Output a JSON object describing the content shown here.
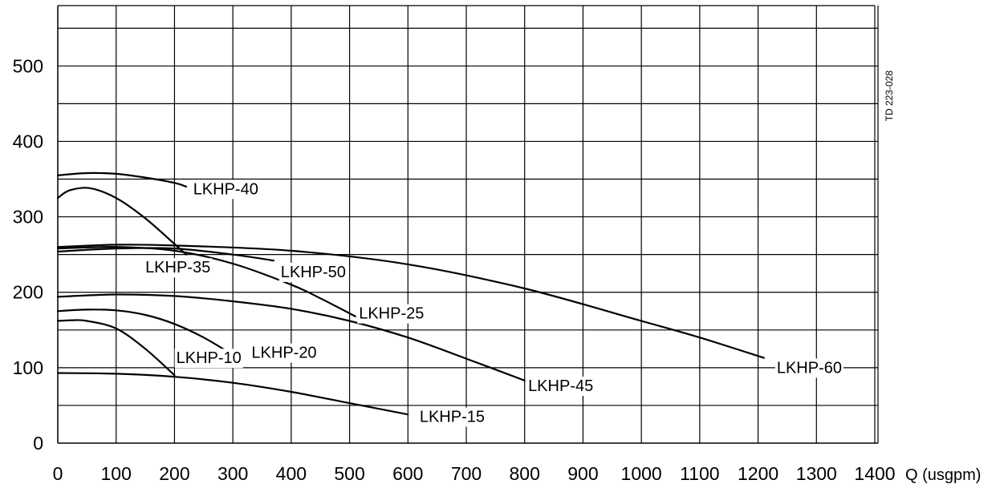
{
  "chart_data": {
    "type": "line",
    "title": "",
    "xlabel": "",
    "ylabel": "",
    "x_unit_label": "Q (usgpm)",
    "xlim": [
      0,
      1400
    ],
    "ylim": [
      0,
      580
    ],
    "grid": true,
    "x_ticks": [
      0,
      100,
      200,
      300,
      400,
      500,
      600,
      700,
      800,
      900,
      1000,
      1100,
      1200,
      1300,
      1400
    ],
    "y_ticks": [
      0,
      100,
      200,
      300,
      400,
      500
    ],
    "y_grid_values": [
      50,
      100,
      150,
      200,
      250,
      300,
      350,
      400,
      450,
      500,
      550
    ],
    "vertical_annotation": "TD 223-028",
    "series": [
      {
        "name": "LKHP-40",
        "x": [
          0,
          50,
          100,
          150,
          200,
          220
        ],
        "y": [
          355,
          358,
          357,
          352,
          345,
          340
        ]
      },
      {
        "name": "LKHP-35",
        "x": [
          0,
          20,
          55,
          100,
          150,
          200,
          220
        ],
        "y": [
          325,
          335,
          338,
          325,
          298,
          264,
          250
        ]
      },
      {
        "name": "LKHP-50",
        "x": [
          0,
          100,
          200,
          300,
          370
        ],
        "y": [
          254,
          258,
          258,
          250,
          242
        ]
      },
      {
        "name": "LKHP-25",
        "x": [
          0,
          100,
          200,
          300,
          400,
          450,
          510
        ],
        "y": [
          258,
          260,
          255,
          238,
          210,
          192,
          168
        ]
      },
      {
        "name": "LKHP-60",
        "x": [
          0,
          100,
          200,
          400,
          600,
          800,
          1000,
          1100,
          1210
        ],
        "y": [
          260,
          263,
          262,
          255,
          237,
          205,
          162,
          140,
          113
        ]
      },
      {
        "name": "LKHP-45",
        "x": [
          0,
          100,
          200,
          300,
          400,
          500,
          600,
          700,
          800
        ],
        "y": [
          194,
          197,
          195,
          188,
          178,
          162,
          140,
          112,
          83
        ]
      },
      {
        "name": "LKHP-20",
        "x": [
          0,
          50,
          100,
          150,
          200,
          250,
          300
        ],
        "y": [
          175,
          177,
          176,
          170,
          158,
          140,
          117
        ]
      },
      {
        "name": "LKHP-10",
        "x": [
          0,
          25,
          50,
          100,
          150,
          200
        ],
        "y": [
          162,
          163,
          162,
          152,
          125,
          90
        ]
      },
      {
        "name": "LKHP-15",
        "x": [
          0,
          100,
          200,
          300,
          400,
          500,
          600
        ],
        "y": [
          93,
          92,
          88,
          80,
          68,
          53,
          38
        ]
      }
    ],
    "series_labels": [
      {
        "name": "LKHP-40",
        "lx": 232,
        "ly": 330
      },
      {
        "name": "LKHP-35",
        "lx": 150,
        "ly": 226
      },
      {
        "name": "LKHP-50",
        "lx": 382,
        "ly": 220
      },
      {
        "name": "LKHP-25",
        "lx": 516,
        "ly": 165
      },
      {
        "name": "LKHP-60",
        "lx": 1232,
        "ly": 93
      },
      {
        "name": "LKHP-45",
        "lx": 806,
        "ly": 69
      },
      {
        "name": "LKHP-20",
        "lx": 332,
        "ly": 113
      },
      {
        "name": "LKHP-10",
        "lx": 203,
        "ly": 106
      },
      {
        "name": "LKHP-15",
        "lx": 620,
        "ly": 28
      }
    ]
  }
}
